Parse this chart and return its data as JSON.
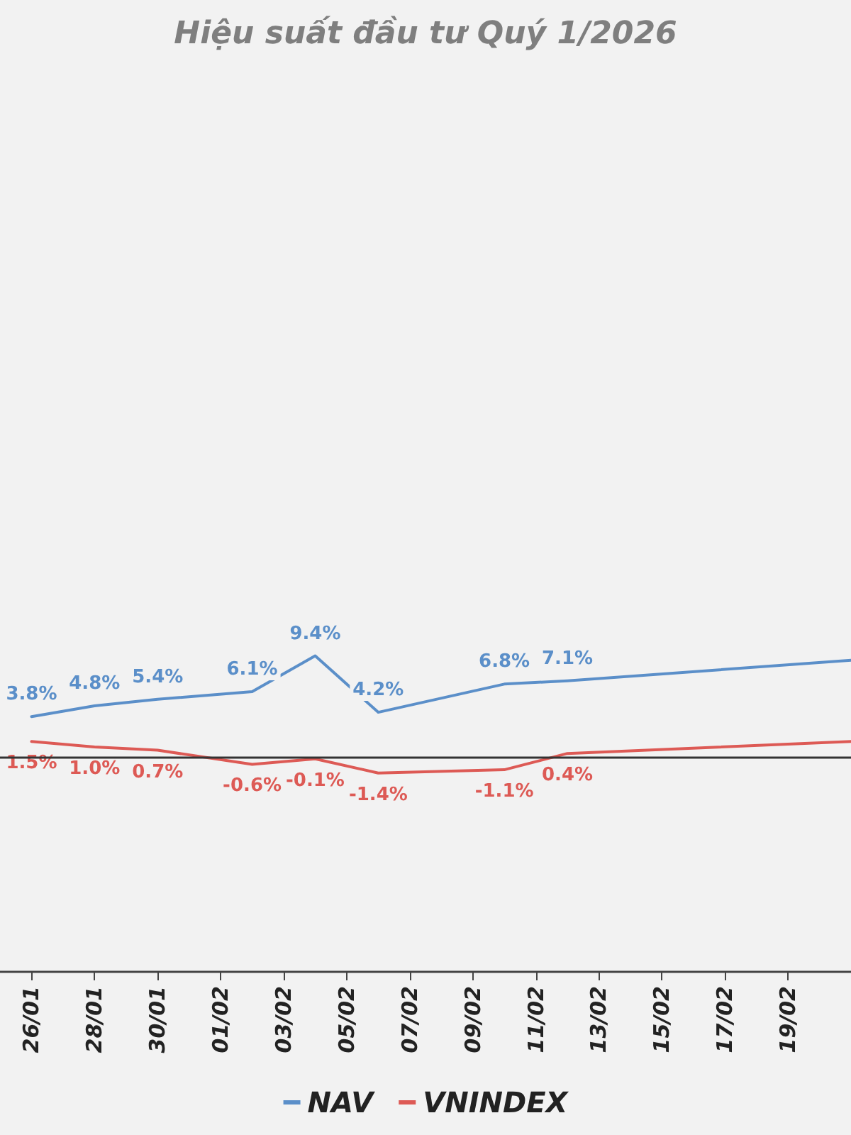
{
  "chart_data": {
    "type": "line",
    "title": "Hiệu suất đầu tư Quý 1/2026",
    "x": [
      "--01-26",
      "--01-28",
      "--01-30",
      "--02-02",
      "--02-04",
      "--02-06",
      "--02-10",
      "--02-12",
      "--02-21"
    ],
    "series": [
      {
        "name": "NAV",
        "color": "#5b8fc9",
        "values": [
          3.8,
          4.8,
          5.4,
          6.1,
          9.4,
          4.2,
          6.8,
          7.1,
          9.0
        ],
        "value_labels": [
          "3.8%",
          "4.8%",
          "5.4%",
          "6.1%",
          "9.4%",
          "4.2%",
          "6.8%",
          "7.1%",
          null
        ]
      },
      {
        "name": "VNINDEX",
        "color": "#dd5a55",
        "values": [
          1.5,
          1.0,
          0.7,
          -0.6,
          -0.1,
          -1.4,
          -1.1,
          0.4,
          1.5
        ],
        "value_labels": [
          "1.5%",
          "1.0%",
          "0.7%",
          "-0.6%",
          "-0.1%",
          "-1.4%",
          "-1.1%",
          "0.4%",
          null
        ]
      }
    ],
    "xlim": [
      "--01-25",
      "--02-21"
    ],
    "xticks": [
      {
        "value": "--01-26",
        "label": "26/01"
      },
      {
        "value": "--01-28",
        "label": "28/01"
      },
      {
        "value": "--01-30",
        "label": "30/01"
      },
      {
        "value": "--02-01",
        "label": "01/02"
      },
      {
        "value": "--02-03",
        "label": "03/02"
      },
      {
        "value": "--02-05",
        "label": "05/02"
      },
      {
        "value": "--02-07",
        "label": "07/02"
      },
      {
        "value": "--02-09",
        "label": "09/02"
      },
      {
        "value": "--02-11",
        "label": "11/02"
      },
      {
        "value": "--02-13",
        "label": "13/02"
      },
      {
        "value": "--02-15",
        "label": "15/02"
      },
      {
        "value": "--02-17",
        "label": "17/02"
      },
      {
        "value": "--02-19",
        "label": "19/02"
      }
    ],
    "tick_labels": "x",
    "ref_lines": [
      {
        "axis": "y",
        "value": 0,
        "color": "#333333"
      }
    ],
    "grid": false,
    "legend": "bottom",
    "marker": "none",
    "line_style": "solid"
  }
}
